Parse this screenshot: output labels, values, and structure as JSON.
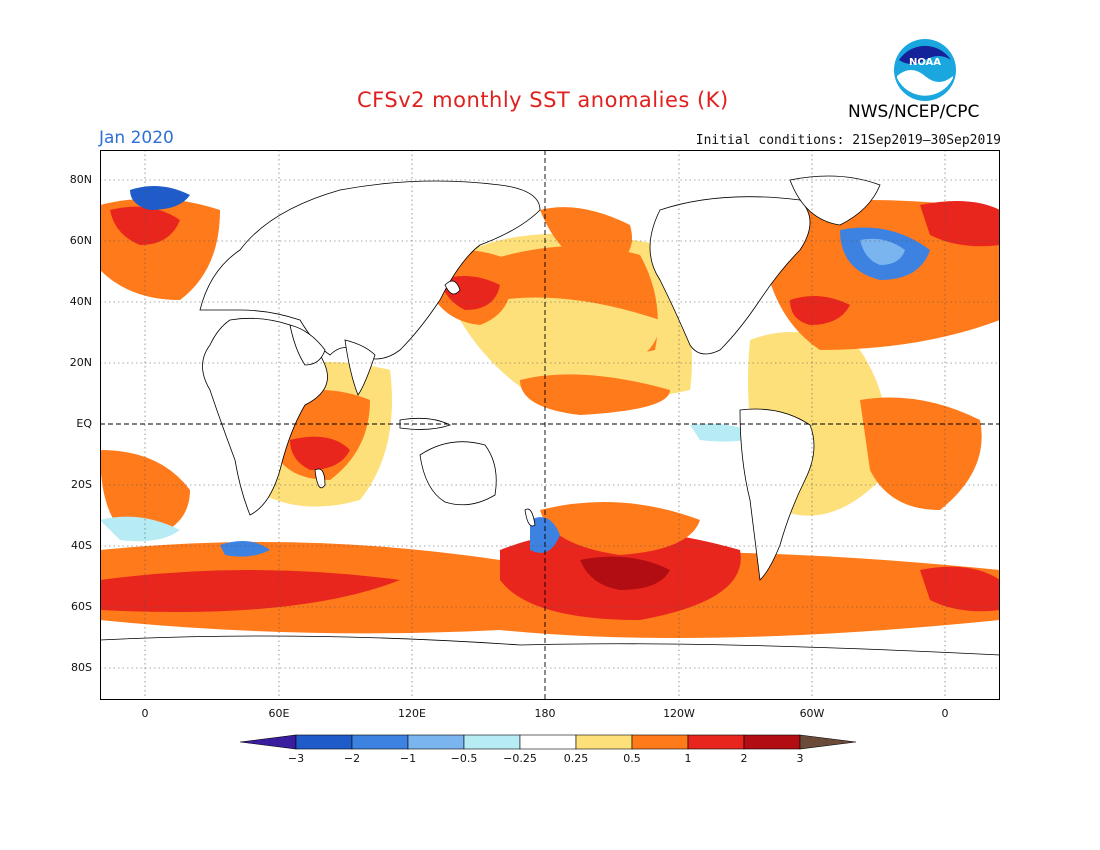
{
  "title": "CFSv2 monthly SST anomalies (K)",
  "agency": "NWS/NCEP/CPC",
  "logo_text": "NOAA",
  "month": "Jan 2020",
  "initial_conditions": "Initial conditions: 21Sep2019–30Sep2019",
  "lat_labels": [
    "80N",
    "60N",
    "40N",
    "20N",
    "EQ",
    "20S",
    "40S",
    "60S",
    "80S"
  ],
  "lon_labels": [
    "0",
    "60E",
    "120E",
    "180",
    "120W",
    "60W",
    "0"
  ],
  "colorbar": {
    "labels": [
      "−3",
      "−2",
      "−1",
      "−0.5",
      "−0.25",
      "0.25",
      "0.5",
      "1",
      "2",
      "3"
    ],
    "colors": [
      "#3a1d9e",
      "#1f5cc9",
      "#3d82e0",
      "#7bb5f0",
      "#b8ecf5",
      "#ffffff",
      "#fde07a",
      "#ff7a1a",
      "#e8261d",
      "#b30d14",
      "#6b4a3a"
    ]
  },
  "colors": {
    "title": "#e0201c",
    "month": "#2c6fd8",
    "land": "#ffffff",
    "coast": "#000000"
  }
}
